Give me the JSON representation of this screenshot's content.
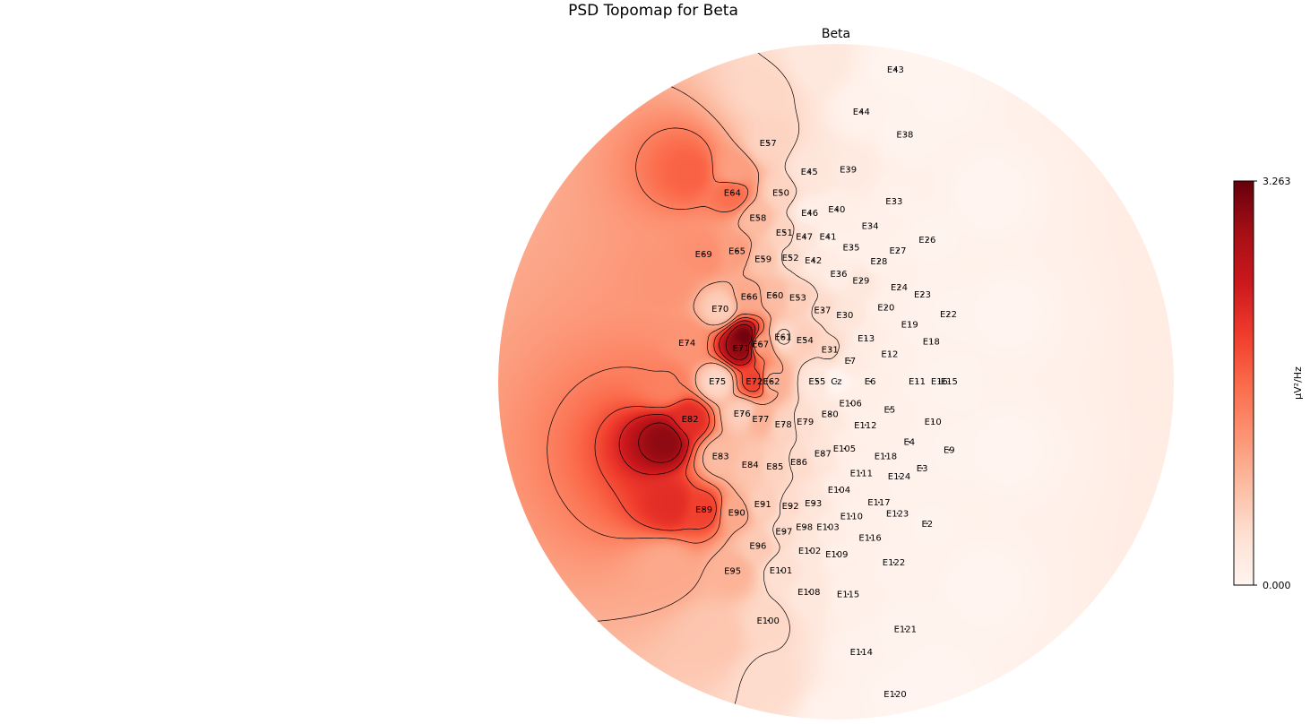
{
  "figure": {
    "title": "PSD Topomap for Beta"
  },
  "chart_data": {
    "type": "heatmap",
    "subtype": "eeg-topomap",
    "title": "Beta",
    "colormap": "Reds",
    "colorbar": {
      "min": 0.0,
      "max": 3.263,
      "min_label": "0.000",
      "max_label": "3.263",
      "label": "µV²/Hz"
    },
    "contours": true,
    "colors": {
      "low": "#fff5f0",
      "mid": "#fb6a4a",
      "high": "#67000d",
      "contour": "#000000"
    },
    "channels": [
      {
        "name": "E43",
        "x": 0.176,
        "y": 0.925,
        "v": 0.02
      },
      {
        "name": "E44",
        "x": 0.075,
        "y": 0.8,
        "v": 0.05
      },
      {
        "name": "E38",
        "x": 0.204,
        "y": 0.732,
        "v": 0.03
      },
      {
        "name": "E57",
        "x": -0.201,
        "y": 0.707,
        "v": 0.55
      },
      {
        "name": "E45",
        "x": -0.079,
        "y": 0.622,
        "v": 0.3
      },
      {
        "name": "E39",
        "x": 0.036,
        "y": 0.629,
        "v": 0.22
      },
      {
        "name": "E64",
        "x": -0.307,
        "y": 0.56,
        "v": 1.6
      },
      {
        "name": "E50",
        "x": -0.163,
        "y": 0.56,
        "v": 0.55
      },
      {
        "name": "E33",
        "x": 0.172,
        "y": 0.535,
        "v": 0.07
      },
      {
        "name": "E40",
        "x": 0.002,
        "y": 0.51,
        "v": 0.12
      },
      {
        "name": "E46",
        "x": -0.078,
        "y": 0.5,
        "v": 0.12
      },
      {
        "name": "E58",
        "x": -0.231,
        "y": 0.486,
        "v": 0.8
      },
      {
        "name": "E34",
        "x": 0.101,
        "y": 0.462,
        "v": 0.1
      },
      {
        "name": "E51",
        "x": -0.153,
        "y": 0.442,
        "v": 0.55
      },
      {
        "name": "E26",
        "x": 0.27,
        "y": 0.42,
        "v": 0.03
      },
      {
        "name": "E47",
        "x": -0.094,
        "y": 0.43,
        "v": 0.3
      },
      {
        "name": "E41",
        "x": -0.024,
        "y": 0.43,
        "v": 0.1
      },
      {
        "name": "E35",
        "x": 0.045,
        "y": 0.398,
        "v": 0.09
      },
      {
        "name": "E27",
        "x": 0.183,
        "y": 0.389,
        "v": 0.06
      },
      {
        "name": "E65",
        "x": -0.293,
        "y": 0.387,
        "v": 1.1
      },
      {
        "name": "E69",
        "x": -0.392,
        "y": 0.378,
        "v": 1.25
      },
      {
        "name": "E59",
        "x": -0.216,
        "y": 0.364,
        "v": 0.7
      },
      {
        "name": "E52",
        "x": -0.135,
        "y": 0.368,
        "v": 0.45
      },
      {
        "name": "E28",
        "x": 0.127,
        "y": 0.357,
        "v": 0.08
      },
      {
        "name": "E42",
        "x": -0.067,
        "y": 0.36,
        "v": 0.2
      },
      {
        "name": "E36",
        "x": 0.008,
        "y": 0.32,
        "v": 0.15
      },
      {
        "name": "E24",
        "x": 0.187,
        "y": 0.28,
        "v": 0.1
      },
      {
        "name": "E29",
        "x": 0.074,
        "y": 0.3,
        "v": 0.25
      },
      {
        "name": "E23",
        "x": 0.256,
        "y": 0.258,
        "v": 0.05
      },
      {
        "name": "E66",
        "x": -0.257,
        "y": 0.252,
        "v": 1.0
      },
      {
        "name": "E60",
        "x": -0.181,
        "y": 0.256,
        "v": 0.8
      },
      {
        "name": "E53",
        "x": -0.113,
        "y": 0.25,
        "v": 0.6
      },
      {
        "name": "E70",
        "x": -0.343,
        "y": 0.216,
        "v": 0.6
      },
      {
        "name": "E37",
        "x": -0.04,
        "y": 0.212,
        "v": 0.45
      },
      {
        "name": "E20",
        "x": 0.148,
        "y": 0.22,
        "v": 0.1
      },
      {
        "name": "E30",
        "x": 0.026,
        "y": 0.198,
        "v": 0.3
      },
      {
        "name": "E22",
        "x": 0.333,
        "y": 0.2,
        "v": 0.03
      },
      {
        "name": "E19",
        "x": 0.218,
        "y": 0.17,
        "v": 0.07
      },
      {
        "name": "E13",
        "x": 0.089,
        "y": 0.128,
        "v": 0.15
      },
      {
        "name": "E61",
        "x": -0.157,
        "y": 0.132,
        "v": 0.45
      },
      {
        "name": "E54",
        "x": -0.092,
        "y": 0.124,
        "v": 0.6
      },
      {
        "name": "E74",
        "x": -0.441,
        "y": 0.115,
        "v": 1.2
      },
      {
        "name": "E71",
        "x": -0.281,
        "y": 0.1,
        "v": 3.0
      },
      {
        "name": "E67",
        "x": -0.224,
        "y": 0.112,
        "v": 1.1
      },
      {
        "name": "E18",
        "x": 0.282,
        "y": 0.12,
        "v": 0.05
      },
      {
        "name": "E31",
        "x": -0.018,
        "y": 0.096,
        "v": 0.5
      },
      {
        "name": "E12",
        "x": 0.159,
        "y": 0.082,
        "v": 0.1
      },
      {
        "name": "E7",
        "x": 0.042,
        "y": 0.062,
        "v": 0.2
      },
      {
        "name": "E75",
        "x": -0.351,
        "y": 0.001,
        "v": 0.5
      },
      {
        "name": "E72",
        "x": -0.242,
        "y": 0.001,
        "v": 2.0
      },
      {
        "name": "E62",
        "x": -0.191,
        "y": 0.001,
        "v": 0.9
      },
      {
        "name": "E55",
        "x": -0.056,
        "y": 0.001,
        "v": 0.25
      },
      {
        "name": "Cz",
        "x": 0.001,
        "y": 0.001,
        "v": 0.0
      },
      {
        "name": "E6",
        "x": 0.101,
        "y": 0.001,
        "v": 0.12
      },
      {
        "name": "E11",
        "x": 0.24,
        "y": 0.001,
        "v": 0.06
      },
      {
        "name": "E16",
        "x": 0.306,
        "y": 0.001,
        "v": 0.04
      },
      {
        "name": "E15",
        "x": 0.335,
        "y": 0.001,
        "v": 0.03
      },
      {
        "name": "E106",
        "x": 0.043,
        "y": -0.064,
        "v": 0.12
      },
      {
        "name": "E76",
        "x": -0.278,
        "y": -0.094,
        "v": 0.6
      },
      {
        "name": "E77",
        "x": -0.223,
        "y": -0.11,
        "v": 0.9
      },
      {
        "name": "E5",
        "x": 0.159,
        "y": -0.082,
        "v": 0.1
      },
      {
        "name": "E80",
        "x": -0.018,
        "y": -0.096,
        "v": 0.25
      },
      {
        "name": "E82",
        "x": -0.432,
        "y": -0.11,
        "v": 2.2
      },
      {
        "name": "E79",
        "x": -0.091,
        "y": -0.118,
        "v": 0.4
      },
      {
        "name": "E78",
        "x": -0.156,
        "y": -0.126,
        "v": 0.55
      },
      {
        "name": "E112",
        "x": 0.087,
        "y": -0.128,
        "v": 0.1
      },
      {
        "name": "E10",
        "x": 0.287,
        "y": -0.118,
        "v": 0.05
      },
      {
        "name": "E4",
        "x": 0.217,
        "y": -0.178,
        "v": 0.07
      },
      {
        "name": "E105",
        "x": 0.025,
        "y": -0.198,
        "v": 0.12
      },
      {
        "name": "E87",
        "x": -0.039,
        "y": -0.212,
        "v": 0.3
      },
      {
        "name": "E9",
        "x": 0.335,
        "y": -0.202,
        "v": 0.03
      },
      {
        "name": "E83",
        "x": -0.342,
        "y": -0.22,
        "v": 0.8
      },
      {
        "name": "E118",
        "x": 0.147,
        "y": -0.22,
        "v": 0.08
      },
      {
        "name": "E84",
        "x": -0.254,
        "y": -0.245,
        "v": 0.7
      },
      {
        "name": "E86",
        "x": -0.11,
        "y": -0.237,
        "v": 0.45
      },
      {
        "name": "E85",
        "x": -0.181,
        "y": -0.25,
        "v": 0.55
      },
      {
        "name": "E3",
        "x": 0.255,
        "y": -0.256,
        "v": 0.05
      },
      {
        "name": "E111",
        "x": 0.075,
        "y": -0.27,
        "v": 0.1
      },
      {
        "name": "E124",
        "x": 0.187,
        "y": -0.28,
        "v": 0.07
      },
      {
        "name": "E104",
        "x": 0.009,
        "y": -0.32,
        "v": 0.12
      },
      {
        "name": "E91",
        "x": -0.217,
        "y": -0.362,
        "v": 0.6
      },
      {
        "name": "E93",
        "x": -0.067,
        "y": -0.36,
        "v": 0.3
      },
      {
        "name": "E117",
        "x": 0.127,
        "y": -0.357,
        "v": 0.08
      },
      {
        "name": "E92",
        "x": -0.135,
        "y": -0.368,
        "v": 0.45
      },
      {
        "name": "E89",
        "x": -0.391,
        "y": -0.378,
        "v": 2.0
      },
      {
        "name": "E90",
        "x": -0.294,
        "y": -0.387,
        "v": 1.0
      },
      {
        "name": "E123",
        "x": 0.182,
        "y": -0.39,
        "v": 0.06
      },
      {
        "name": "E110",
        "x": 0.046,
        "y": -0.398,
        "v": 0.1
      },
      {
        "name": "E2",
        "x": 0.27,
        "y": -0.42,
        "v": 0.04
      },
      {
        "name": "E98",
        "x": -0.094,
        "y": -0.43,
        "v": 0.3
      },
      {
        "name": "E103",
        "x": -0.024,
        "y": -0.43,
        "v": 0.15
      },
      {
        "name": "E97",
        "x": -0.154,
        "y": -0.443,
        "v": 0.45
      },
      {
        "name": "E116",
        "x": 0.101,
        "y": -0.462,
        "v": 0.08
      },
      {
        "name": "E96",
        "x": -0.231,
        "y": -0.486,
        "v": 0.65
      },
      {
        "name": "E102",
        "x": -0.078,
        "y": -0.5,
        "v": 0.25
      },
      {
        "name": "E109",
        "x": 0.002,
        "y": -0.51,
        "v": 0.1
      },
      {
        "name": "E122",
        "x": 0.171,
        "y": -0.535,
        "v": 0.05
      },
      {
        "name": "E101",
        "x": -0.163,
        "y": -0.559,
        "v": 0.4
      },
      {
        "name": "E95",
        "x": -0.306,
        "y": -0.56,
        "v": 0.9
      },
      {
        "name": "E108",
        "x": -0.08,
        "y": -0.622,
        "v": 0.25
      },
      {
        "name": "E115",
        "x": 0.036,
        "y": -0.629,
        "v": 0.08
      },
      {
        "name": "E100",
        "x": -0.201,
        "y": -0.707,
        "v": 0.5
      },
      {
        "name": "E121",
        "x": 0.205,
        "y": -0.732,
        "v": 0.03
      },
      {
        "name": "E114",
        "x": 0.075,
        "y": -0.8,
        "v": 0.05
      },
      {
        "name": "E120",
        "x": 0.175,
        "y": -0.925,
        "v": 0.02
      }
    ],
    "extra_sources": [
      {
        "x": -0.506,
        "y": -0.175,
        "v": 3.0
      },
      {
        "x": -0.49,
        "y": -0.36,
        "v": 2.2
      },
      {
        "x": -0.43,
        "y": 0.62,
        "v": 1.7
      },
      {
        "x": -0.49,
        "y": 0.3,
        "v": 1.2
      },
      {
        "x": -0.5,
        "y": 0.0,
        "v": 1.4
      },
      {
        "x": -0.3,
        "y": 0.62,
        "v": 1.1
      },
      {
        "x": -0.27,
        "y": 0.13,
        "v": 3.2
      },
      {
        "x": -0.5,
        "y": -0.55,
        "v": 1.0
      },
      {
        "x": -0.36,
        "y": -0.75,
        "v": 0.7
      },
      {
        "x": -0.2,
        "y": -0.88,
        "v": 0.45
      },
      {
        "x": -0.2,
        "y": 0.86,
        "v": 0.5
      },
      {
        "x": -0.06,
        "y": 0.95,
        "v": 0.25
      },
      {
        "x": 0.3,
        "y": 0.85,
        "v": 0.02
      },
      {
        "x": 0.44,
        "y": 0.55,
        "v": 0.01
      },
      {
        "x": 0.49,
        "y": 0.2,
        "v": 0.01
      },
      {
        "x": 0.49,
        "y": -0.2,
        "v": 0.01
      },
      {
        "x": 0.42,
        "y": -0.6,
        "v": 0.01
      },
      {
        "x": 0.28,
        "y": -0.88,
        "v": 0.01
      },
      {
        "x": 0.0,
        "y": -0.99,
        "v": 0.05
      }
    ]
  }
}
